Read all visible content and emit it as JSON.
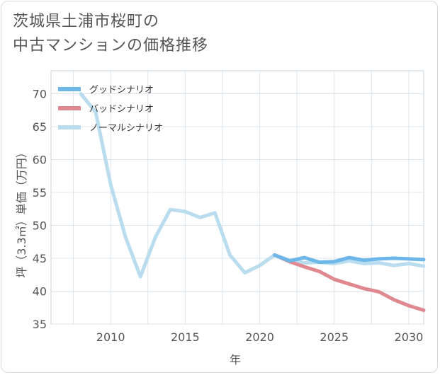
{
  "title_lines": [
    "茨城県土浦市桜町の",
    "中古マンションの価格推移"
  ],
  "chart_data": {
    "type": "line",
    "xlabel": "年",
    "ylabel": "坪（3.3㎡）単価（万円）",
    "xlim": [
      2006,
      2031
    ],
    "ylim": [
      35,
      73.5
    ],
    "xticks": [
      2010,
      2015,
      2020,
      2025,
      2030
    ],
    "yticks": [
      35,
      40,
      45,
      50,
      55,
      60,
      65,
      70
    ],
    "grid": true,
    "legend_position": "top-left",
    "series": [
      {
        "name": "グッドシナリオ",
        "color": "#6cb6ea",
        "x": [
          2021,
          2022,
          2023,
          2024,
          2025,
          2026,
          2027,
          2028,
          2029,
          2030,
          2031
        ],
        "y": [
          45.5,
          44.6,
          45.1,
          44.4,
          44.5,
          45.1,
          44.7,
          44.9,
          45.0,
          44.9,
          44.8
        ]
      },
      {
        "name": "バッドシナリオ",
        "color": "#e0888f",
        "x": [
          2021,
          2022,
          2023,
          2024,
          2025,
          2026,
          2027,
          2028,
          2029,
          2030,
          2031
        ],
        "y": [
          45.5,
          44.5,
          43.7,
          43.0,
          41.8,
          41.1,
          40.4,
          39.9,
          38.7,
          37.8,
          37.1
        ]
      },
      {
        "name": "ノーマルシナリオ",
        "color": "#b9dcee",
        "x": [
          2008,
          2009,
          2010,
          2011,
          2012,
          2013,
          2014,
          2015,
          2016,
          2017,
          2018,
          2019,
          2020,
          2021,
          2022,
          2023,
          2024,
          2025,
          2026,
          2027,
          2028,
          2029,
          2030,
          2031
        ],
        "y": [
          70.0,
          67.2,
          56.2,
          48.2,
          42.2,
          48.2,
          52.4,
          52.1,
          51.2,
          51.9,
          45.5,
          42.8,
          43.9,
          45.5,
          44.7,
          44.3,
          44.4,
          44.2,
          44.6,
          44.2,
          44.3,
          43.9,
          44.2,
          43.8
        ]
      }
    ]
  }
}
